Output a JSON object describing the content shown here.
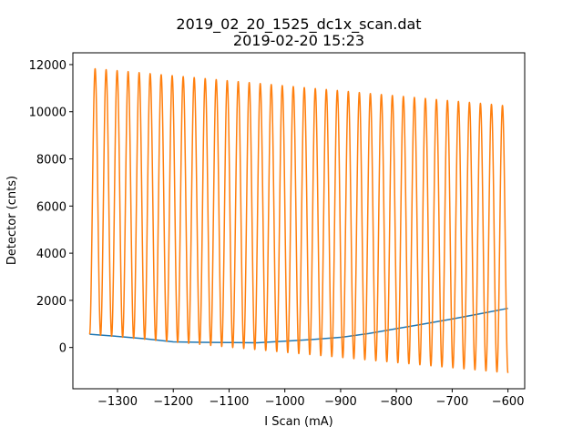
{
  "chart_data": {
    "type": "line",
    "title": "2019_02_20_1525_dc1x_scan.dat",
    "subtitle": "2019-02-20 15:23",
    "xlabel": "I Scan (mA)",
    "ylabel": "Detector (cnts)",
    "xlim": [
      -1380,
      -570
    ],
    "ylim": [
      -1750,
      12500
    ],
    "xticks": [
      -1300,
      -1200,
      -1100,
      -1000,
      -900,
      -800,
      -700,
      -600
    ],
    "xtick_labels": [
      "−1300",
      "−1200",
      "−1100",
      "−1000",
      "−900",
      "−800",
      "−700",
      "−600"
    ],
    "yticks": [
      0,
      2000,
      4000,
      6000,
      8000,
      10000,
      12000
    ],
    "ytick_labels": [
      "0",
      "2000",
      "4000",
      "6000",
      "8000",
      "10000",
      "12000"
    ],
    "grid": false,
    "series": [
      {
        "color": "#1f77b4",
        "x": [
          -1350,
          -1300,
          -1250,
          -1200,
          -1150,
          -1100,
          -1050,
          -1000,
          -950,
          -900,
          -850,
          -800,
          -750,
          -700,
          -650,
          -600
        ],
        "y": [
          560,
          470,
          370,
          240,
          220,
          210,
          200,
          270,
          340,
          430,
          590,
          800,
          1000,
          1210,
          1430,
          1660
        ]
      },
      {
        "color": "#ff7f0e",
        "x_start": -1350,
        "x_end": -600,
        "oscillations": 38,
        "peak_start": 11850,
        "peak_end": 10250,
        "trough_start": 560,
        "trough_end": -1080
      }
    ]
  }
}
